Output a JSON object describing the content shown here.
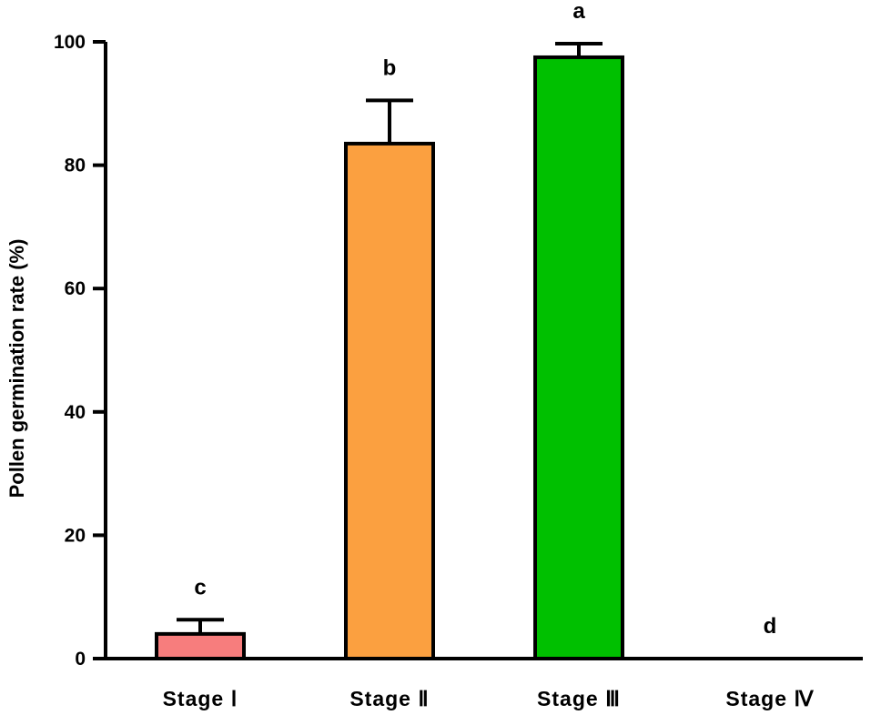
{
  "chart_data": {
    "type": "bar",
    "ylabel": "Pollen germination rate  (%)",
    "ylim": [
      0,
      100
    ],
    "yticks": [
      0,
      20,
      40,
      60,
      80,
      100
    ],
    "categories": [
      "Stage  Ⅰ",
      "Stage  Ⅱ",
      "Stage  Ⅲ",
      "Stage  Ⅳ"
    ],
    "values": [
      4,
      83.5,
      97.5,
      0
    ],
    "errors": [
      2.3,
      7,
      2.2,
      0
    ],
    "significance": [
      "c",
      "b",
      "a",
      "d"
    ],
    "colors": [
      "#f77d7d",
      "#fba040",
      "#00c000",
      "#ffffff"
    ],
    "grid": false
  }
}
